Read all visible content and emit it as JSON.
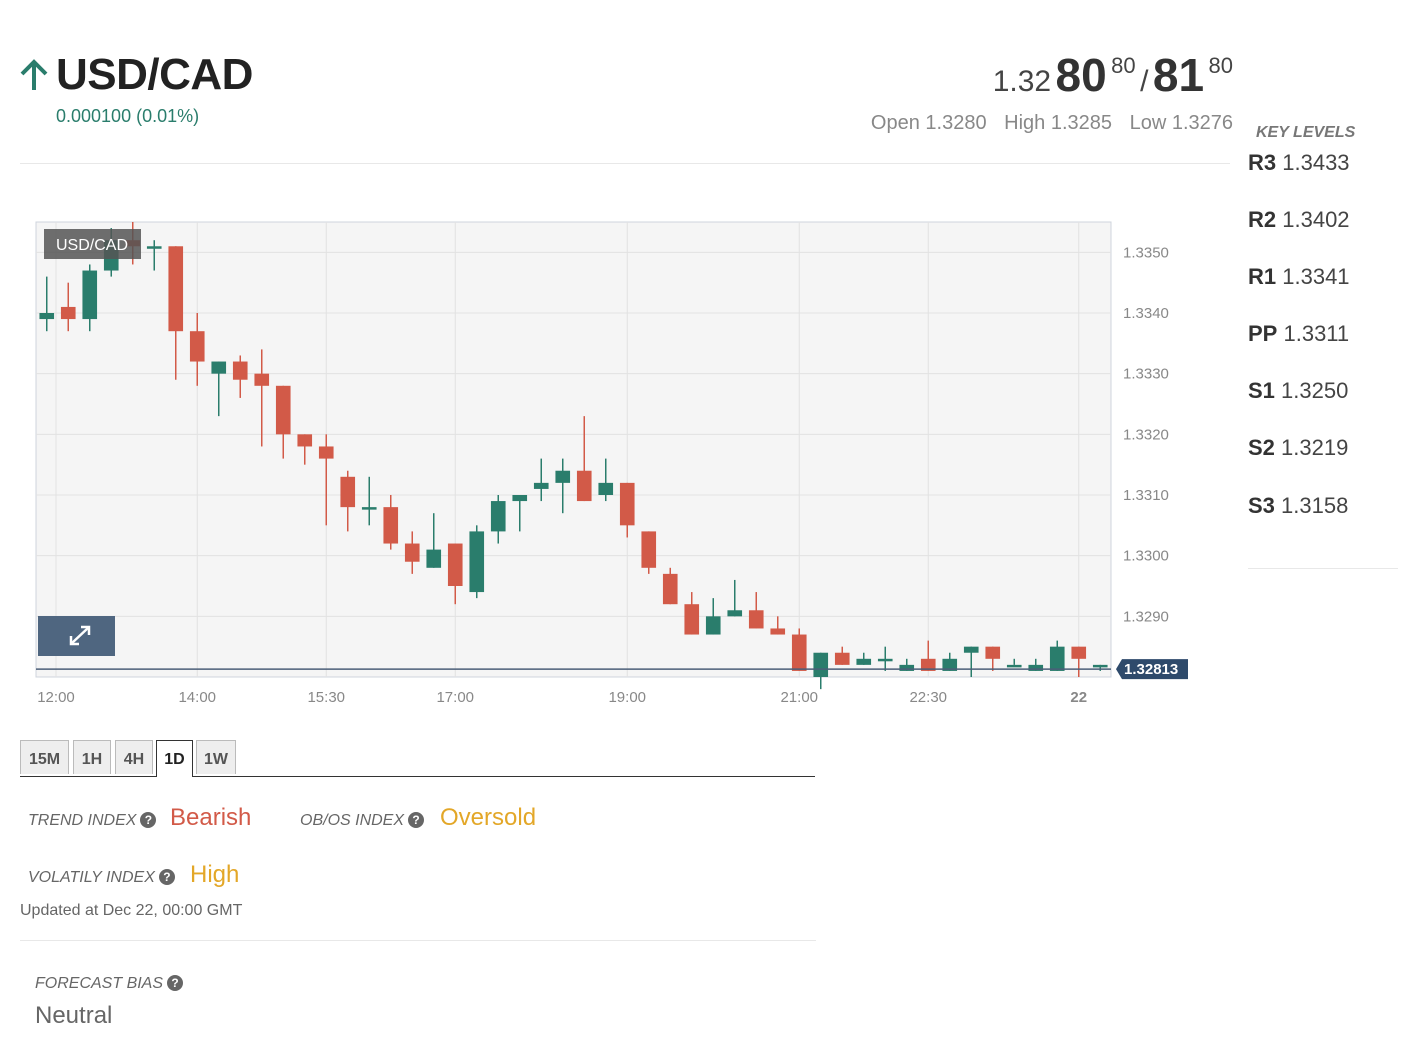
{
  "header": {
    "pair": "USD/CAD",
    "change": "0.000100 (0.01%)",
    "bid_prefix": "1.32",
    "bid_big": "80",
    "bid_sup": "80",
    "slash": "/",
    "ask_big": "81",
    "ask_sup": "80",
    "open": "Open 1.3280",
    "high": "High 1.3285",
    "low": "Low 1.3276",
    "trend_color": "#2a7d6c"
  },
  "key_levels": {
    "title": "KEY LEVELS",
    "items": [
      {
        "name": "R3",
        "value": "1.3433"
      },
      {
        "name": "R2",
        "value": "1.3402"
      },
      {
        "name": "R1",
        "value": "1.3341"
      },
      {
        "name": "PP",
        "value": "1.3311"
      },
      {
        "name": "S1",
        "value": "1.3250"
      },
      {
        "name": "S2",
        "value": "1.3219"
      },
      {
        "name": "S3",
        "value": "1.3158"
      }
    ]
  },
  "chart_data": {
    "type": "candlestick",
    "series_label": "USD/CAD",
    "x_tick_labels": [
      "12:00",
      "14:00",
      "15:30",
      "17:00",
      "19:00",
      "21:00",
      "22:30",
      "22"
    ],
    "y_tick_labels": [
      "1.3350",
      "1.3340",
      "1.3330",
      "1.3320",
      "1.3310",
      "1.3300",
      "1.3290"
    ],
    "ylim": [
      1.328,
      1.3355
    ],
    "current_price": "1.32813",
    "up_color": "#2a7d6c",
    "down_color": "#d25a48",
    "candles": [
      [
        1.3339,
        1.334,
        1.3346,
        1.3337
      ],
      [
        1.3341,
        1.3339,
        1.3345,
        1.3337
      ],
      [
        1.3339,
        1.3347,
        1.3348,
        1.3337
      ],
      [
        1.3347,
        1.3352,
        1.3354,
        1.3346
      ],
      [
        1.3352,
        1.3351,
        1.3355,
        1.3348
      ],
      [
        1.3351,
        1.3351,
        1.3352,
        1.3347
      ],
      [
        1.3351,
        1.3337,
        1.3351,
        1.3329
      ],
      [
        1.3337,
        1.3332,
        1.334,
        1.3328
      ],
      [
        1.333,
        1.3332,
        1.3332,
        1.3323
      ],
      [
        1.3332,
        1.3329,
        1.3333,
        1.3326
      ],
      [
        1.333,
        1.3328,
        1.3334,
        1.3318
      ],
      [
        1.3328,
        1.332,
        1.3328,
        1.3316
      ],
      [
        1.332,
        1.3318,
        1.332,
        1.3315
      ],
      [
        1.3318,
        1.3316,
        1.332,
        1.3305
      ],
      [
        1.3313,
        1.3308,
        1.3314,
        1.3304
      ],
      [
        1.3308,
        1.3308,
        1.3313,
        1.3305
      ],
      [
        1.3308,
        1.3302,
        1.331,
        1.3301
      ],
      [
        1.3302,
        1.3299,
        1.3304,
        1.3297
      ],
      [
        1.3298,
        1.3301,
        1.3307,
        1.3298
      ],
      [
        1.3302,
        1.3295,
        1.3302,
        1.3292
      ],
      [
        1.3294,
        1.3304,
        1.3305,
        1.3293
      ],
      [
        1.3304,
        1.3309,
        1.331,
        1.3302
      ],
      [
        1.3309,
        1.331,
        1.331,
        1.3304
      ],
      [
        1.3311,
        1.3312,
        1.3316,
        1.3309
      ],
      [
        1.3312,
        1.3314,
        1.3316,
        1.3307
      ],
      [
        1.3314,
        1.3309,
        1.3323,
        1.3309
      ],
      [
        1.331,
        1.3312,
        1.3316,
        1.3309
      ],
      [
        1.3312,
        1.3305,
        1.3312,
        1.3303
      ],
      [
        1.3304,
        1.3298,
        1.3304,
        1.3297
      ],
      [
        1.3297,
        1.3292,
        1.3298,
        1.3292
      ],
      [
        1.3292,
        1.3287,
        1.3294,
        1.3287
      ],
      [
        1.3287,
        1.329,
        1.3293,
        1.3287
      ],
      [
        1.329,
        1.3291,
        1.3296,
        1.329
      ],
      [
        1.3291,
        1.3288,
        1.3294,
        1.3288
      ],
      [
        1.3288,
        1.3287,
        1.329,
        1.3287
      ],
      [
        1.3287,
        1.3281,
        1.3288,
        1.3281
      ],
      [
        1.328,
        1.3284,
        1.3284,
        1.3278
      ],
      [
        1.3284,
        1.3282,
        1.3285,
        1.3282
      ],
      [
        1.3282,
        1.3283,
        1.3284,
        1.3282
      ],
      [
        1.3283,
        1.3283,
        1.3285,
        1.3281
      ],
      [
        1.3281,
        1.3282,
        1.3283,
        1.3281
      ],
      [
        1.3283,
        1.3281,
        1.3286,
        1.3281
      ],
      [
        1.3281,
        1.3283,
        1.3284,
        1.3281
      ],
      [
        1.3284,
        1.3285,
        1.3285,
        1.328
      ],
      [
        1.3285,
        1.3283,
        1.3285,
        1.3281
      ],
      [
        1.3282,
        1.3282,
        1.3283,
        1.3282
      ],
      [
        1.3281,
        1.3282,
        1.3283,
        1.3281
      ],
      [
        1.3281,
        1.3285,
        1.3286,
        1.3281
      ],
      [
        1.3285,
        1.3283,
        1.3285,
        1.328
      ],
      [
        1.3282,
        1.3282,
        1.3282,
        1.3281
      ]
    ]
  },
  "tabs": [
    {
      "label": "15M",
      "active": false
    },
    {
      "label": "1H",
      "active": false
    },
    {
      "label": "4H",
      "active": false
    },
    {
      "label": "1D",
      "active": true
    },
    {
      "label": "1W",
      "active": false
    }
  ],
  "indices": {
    "trend_label": "TREND INDEX",
    "trend_value": "Bearish",
    "trend_color": "#d25a48",
    "obos_label": "OB/OS INDEX",
    "obos_value": "Oversold",
    "obos_color": "#e3a728",
    "volatility_label": "VOLATILY INDEX",
    "volatility_value": "High",
    "volatility_color": "#e3a728",
    "help_icon": "?"
  },
  "updated": "Updated at Dec 22, 00:00 GMT",
  "forecast": {
    "label": "FORECAST BIAS",
    "value": "Neutral"
  }
}
